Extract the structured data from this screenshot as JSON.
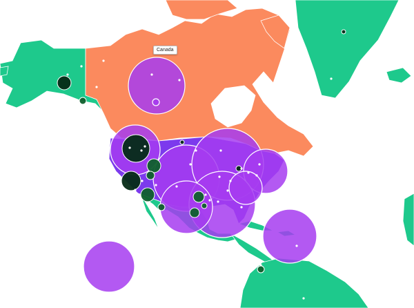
{
  "map": {
    "tooltip_label": "Canada",
    "colors": {
      "background": "#ffffff",
      "land_default": "#1ec98c",
      "canada": "#fb8a5e",
      "usa": "#7c3aed",
      "bubble_large": "#a63cf0",
      "bubble_small": "#0f5f2c",
      "bubble_dark": "#052b16",
      "bubble_stroke": "#ffffff"
    }
  }
}
